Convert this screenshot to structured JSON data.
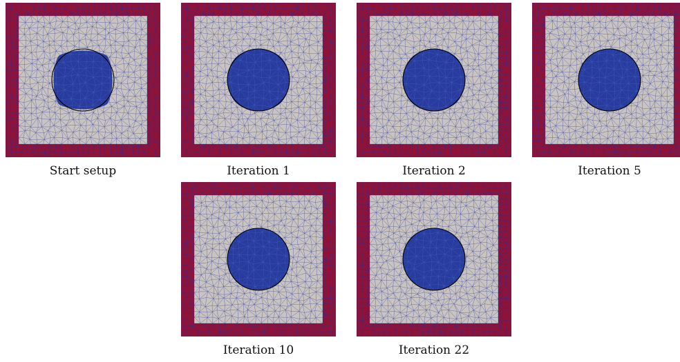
{
  "colors": {
    "frame": "#8f1238",
    "mesh_field": "#c9c4c1",
    "inclusion": "#283c9e",
    "mesh_line": "#24309a",
    "target_circle": "#000000"
  },
  "panels": [
    {
      "caption": "Start setup",
      "squareness": 0.55
    },
    {
      "caption": "Iteration 1",
      "squareness": 0.16
    },
    {
      "caption": "Iteration 2",
      "squareness": 0.12
    },
    {
      "caption": "Iteration 5",
      "squareness": 0.08
    },
    {
      "caption": "Iteration 10",
      "squareness": 0.02
    },
    {
      "caption": "Iteration 22",
      "squareness": 0.0
    }
  ]
}
